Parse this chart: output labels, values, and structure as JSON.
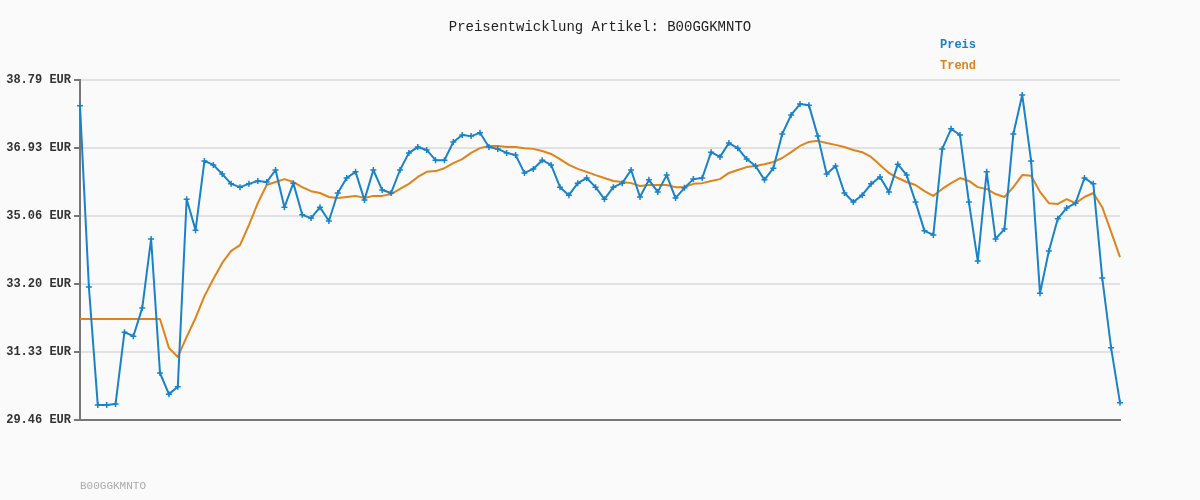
{
  "chart_data": {
    "type": "line",
    "title": "Preisentwicklung Artikel: B00GGKMNTO",
    "categories": [
      null,
      null,
      null,
      null,
      null,
      null,
      null,
      null,
      null,
      null,
      null,
      null,
      null,
      null,
      null,
      null,
      null,
      null,
      null,
      null,
      null,
      null,
      null,
      null,
      null,
      null,
      null,
      null,
      null,
      null,
      null,
      null,
      null,
      null,
      null,
      null,
      null,
      null,
      null,
      null,
      null,
      null,
      null,
      null,
      null,
      null,
      null,
      null,
      null,
      null,
      null,
      null,
      null,
      null,
      null,
      null,
      null,
      null,
      null,
      null,
      null,
      null,
      null,
      null,
      null,
      null,
      null,
      null,
      null,
      null,
      null,
      null,
      null,
      null,
      null,
      null,
      null,
      null,
      null,
      null,
      null,
      null,
      null,
      null,
      null,
      null,
      null,
      null,
      null,
      null,
      null,
      null,
      null,
      null,
      null,
      null,
      null,
      null,
      null,
      null,
      null,
      null,
      null,
      null,
      null,
      null,
      null,
      null,
      null,
      null,
      null,
      null,
      null,
      null,
      null,
      null,
      null,
      null
    ],
    "series": [
      {
        "name": "Preis",
        "color": "#1a82c8",
        "marker": "cross",
        "values": [
          38.08,
          33.11,
          29.87,
          29.87,
          29.9,
          31.87,
          31.76,
          32.53,
          34.43,
          30.75,
          30.17,
          30.37,
          35.52,
          34.67,
          36.57,
          36.46,
          36.21,
          35.94,
          35.85,
          35.94,
          36.02,
          35.99,
          36.32,
          35.3,
          35.96,
          35.09,
          35.0,
          35.3,
          34.92,
          35.69,
          36.1,
          36.27,
          35.5,
          36.32,
          35.77,
          35.69,
          36.32,
          36.79,
          36.95,
          36.87,
          36.59,
          36.59,
          37.09,
          37.28,
          37.25,
          37.34,
          36.95,
          36.9,
          36.79,
          36.73,
          36.24,
          36.35,
          36.59,
          36.46,
          35.85,
          35.63,
          35.96,
          36.1,
          35.85,
          35.52,
          35.85,
          35.96,
          36.32,
          35.58,
          36.05,
          35.72,
          36.18,
          35.55,
          35.83,
          36.07,
          36.1,
          36.81,
          36.68,
          37.06,
          36.92,
          36.62,
          36.43,
          36.05,
          36.37,
          37.31,
          37.83,
          38.13,
          38.1,
          37.25,
          36.21,
          36.43,
          35.69,
          35.44,
          35.63,
          35.94,
          36.13,
          35.72,
          36.48,
          36.18,
          35.44,
          34.65,
          34.54,
          36.9,
          37.45,
          37.28,
          35.44,
          33.82,
          36.27,
          34.43,
          34.7,
          37.31,
          38.38,
          36.57,
          32.94,
          34.1,
          34.98,
          35.28,
          35.41,
          36.1,
          35.94,
          33.36,
          31.44,
          29.93
        ]
      },
      {
        "name": "Trend",
        "color": "#e0831a",
        "marker": "none",
        "values": [
          32.23,
          32.23,
          32.23,
          32.23,
          32.23,
          32.23,
          32.23,
          32.23,
          32.23,
          32.23,
          31.44,
          31.19,
          31.74,
          32.26,
          32.86,
          33.33,
          33.77,
          34.1,
          34.26,
          34.81,
          35.41,
          35.91,
          35.99,
          36.07,
          35.99,
          35.85,
          35.74,
          35.69,
          35.58,
          35.55,
          35.58,
          35.61,
          35.55,
          35.61,
          35.61,
          35.66,
          35.8,
          35.94,
          36.13,
          36.27,
          36.29,
          36.37,
          36.51,
          36.62,
          36.79,
          36.92,
          36.98,
          36.98,
          36.95,
          36.95,
          36.92,
          36.9,
          36.84,
          36.76,
          36.62,
          36.46,
          36.35,
          36.27,
          36.18,
          36.1,
          36.02,
          35.99,
          35.96,
          35.88,
          35.91,
          35.91,
          35.91,
          35.85,
          35.85,
          35.94,
          35.96,
          36.02,
          36.07,
          36.24,
          36.32,
          36.4,
          36.43,
          36.48,
          36.54,
          36.65,
          36.81,
          36.98,
          37.09,
          37.12,
          37.06,
          37.01,
          36.95,
          36.87,
          36.81,
          36.68,
          36.46,
          36.24,
          36.1,
          35.99,
          35.91,
          35.74,
          35.61,
          35.8,
          35.96,
          36.1,
          36.02,
          35.85,
          35.8,
          35.66,
          35.58,
          35.85,
          36.18,
          36.16,
          35.72,
          35.41,
          35.39,
          35.52,
          35.41,
          35.58,
          35.69,
          35.3,
          34.62,
          33.93
        ]
      }
    ],
    "ylim": [
      29.46,
      38.79
    ],
    "yticks": [
      {
        "value": 29.46,
        "label": "29.46 EUR"
      },
      {
        "value": 31.33,
        "label": "31.33 EUR"
      },
      {
        "value": 33.2,
        "label": "33.20 EUR"
      },
      {
        "value": 35.06,
        "label": "35.06 EUR"
      },
      {
        "value": 36.93,
        "label": "36.93 EUR"
      },
      {
        "value": 38.79,
        "label": "38.79 EUR"
      }
    ],
    "grid": "y",
    "legend": "top right",
    "line_style": "solid",
    "annotations": [
      "B00GGKMNTO"
    ]
  }
}
